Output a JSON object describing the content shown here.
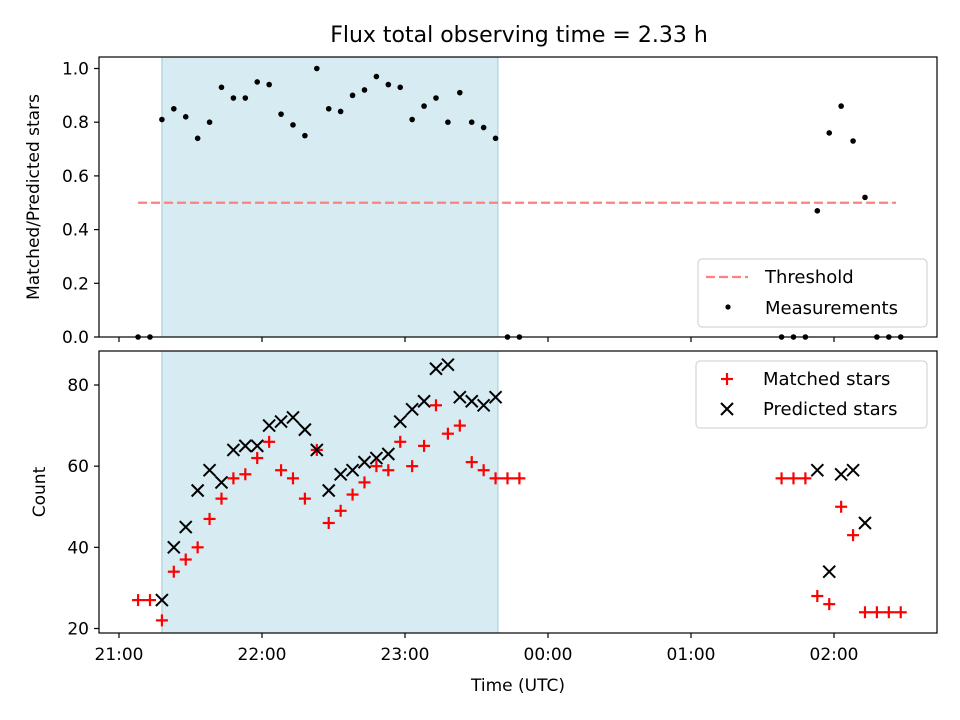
{
  "title": "Flux total observing time = 2.33 h",
  "chart_data": [
    {
      "type": "scatter",
      "ylabel": "Matched/Predicted stars",
      "xlabel": "",
      "xlim": [
        "21:00",
        "02:45"
      ],
      "ylim": [
        0,
        1.05
      ],
      "yticks": [
        "0.0",
        "0.2",
        "0.4",
        "0.6",
        "0.8",
        "1.0"
      ],
      "grid": false,
      "legend_position": "lower-right",
      "legend": [
        "Threshold",
        "Measurements"
      ],
      "shaded_interval": [
        "21:18",
        "23:39"
      ],
      "threshold": {
        "name": "Threshold",
        "value": 0.5,
        "x_range": [
          "21:08",
          "02:26"
        ],
        "color": "#ff8080"
      },
      "series": [
        {
          "name": "Measurements",
          "color": "#000000",
          "marker": "point",
          "points": [
            [
              "21:08",
              0.0
            ],
            [
              "21:13",
              0.0
            ],
            [
              "21:18",
              0.81
            ],
            [
              "21:23",
              0.85
            ],
            [
              "21:28",
              0.82
            ],
            [
              "21:33",
              0.74
            ],
            [
              "21:38",
              0.8
            ],
            [
              "21:43",
              0.93
            ],
            [
              "21:48",
              0.89
            ],
            [
              "21:53",
              0.89
            ],
            [
              "21:58",
              0.95
            ],
            [
              "22:03",
              0.94
            ],
            [
              "22:08",
              0.83
            ],
            [
              "22:13",
              0.79
            ],
            [
              "22:18",
              0.75
            ],
            [
              "22:23",
              1.0
            ],
            [
              "22:28",
              0.85
            ],
            [
              "22:33",
              0.84
            ],
            [
              "22:38",
              0.9
            ],
            [
              "22:43",
              0.92
            ],
            [
              "22:48",
              0.97
            ],
            [
              "22:53",
              0.94
            ],
            [
              "22:58",
              0.93
            ],
            [
              "23:03",
              0.81
            ],
            [
              "23:08",
              0.86
            ],
            [
              "23:13",
              0.89
            ],
            [
              "23:18",
              0.8
            ],
            [
              "23:23",
              0.91
            ],
            [
              "23:28",
              0.8
            ],
            [
              "23:33",
              0.78
            ],
            [
              "23:38",
              0.74
            ],
            [
              "23:43",
              0.0
            ],
            [
              "23:48",
              0.0
            ],
            [
              "01:38",
              0.0
            ],
            [
              "01:43",
              0.0
            ],
            [
              "01:48",
              0.0
            ],
            [
              "01:53",
              0.47
            ],
            [
              "01:58",
              0.76
            ],
            [
              "02:03",
              0.86
            ],
            [
              "02:08",
              0.73
            ],
            [
              "02:13",
              0.52
            ],
            [
              "02:18",
              0.0
            ],
            [
              "02:23",
              0.0
            ],
            [
              "02:28",
              0.0
            ]
          ]
        }
      ]
    },
    {
      "type": "scatter",
      "ylabel": "Count",
      "xlabel": "Time (UTC)",
      "xlim": [
        "21:00",
        "02:45"
      ],
      "ylim": [
        19,
        89
      ],
      "yticks": [
        "20",
        "40",
        "60",
        "80"
      ],
      "xticks": [
        "21:00",
        "22:00",
        "23:00",
        "00:00",
        "01:00",
        "02:00"
      ],
      "grid": false,
      "legend_position": "upper-right",
      "legend": [
        "Matched stars",
        "Predicted stars"
      ],
      "shaded_interval": [
        "21:18",
        "23:39"
      ],
      "series": [
        {
          "name": "Matched stars",
          "color": "#ff0000",
          "marker": "plus",
          "points": [
            [
              "21:08",
              27
            ],
            [
              "21:13",
              27
            ],
            [
              "21:18",
              22
            ],
            [
              "21:23",
              34
            ],
            [
              "21:28",
              37
            ],
            [
              "21:33",
              40
            ],
            [
              "21:38",
              47
            ],
            [
              "21:43",
              52
            ],
            [
              "21:48",
              57
            ],
            [
              "21:53",
              58
            ],
            [
              "21:58",
              62
            ],
            [
              "22:03",
              66
            ],
            [
              "22:08",
              59
            ],
            [
              "22:13",
              57
            ],
            [
              "22:18",
              52
            ],
            [
              "22:23",
              64
            ],
            [
              "22:28",
              46
            ],
            [
              "22:33",
              49
            ],
            [
              "22:38",
              53
            ],
            [
              "22:43",
              56
            ],
            [
              "22:48",
              60
            ],
            [
              "22:53",
              59
            ],
            [
              "22:58",
              66
            ],
            [
              "23:03",
              60
            ],
            [
              "23:08",
              65
            ],
            [
              "23:13",
              75
            ],
            [
              "23:18",
              68
            ],
            [
              "23:23",
              70
            ],
            [
              "23:28",
              61
            ],
            [
              "23:33",
              59
            ],
            [
              "23:38",
              57
            ],
            [
              "23:43",
              57
            ],
            [
              "23:48",
              57
            ],
            [
              "01:38",
              57
            ],
            [
              "01:43",
              57
            ],
            [
              "01:48",
              57
            ],
            [
              "01:53",
              28
            ],
            [
              "01:58",
              26
            ],
            [
              "02:03",
              50
            ],
            [
              "02:08",
              43
            ],
            [
              "02:13",
              24
            ],
            [
              "02:18",
              24
            ],
            [
              "02:23",
              24
            ],
            [
              "02:28",
              24
            ]
          ]
        },
        {
          "name": "Predicted stars",
          "color": "#000000",
          "marker": "x",
          "points": [
            [
              "21:18",
              27
            ],
            [
              "21:23",
              40
            ],
            [
              "21:28",
              45
            ],
            [
              "21:33",
              54
            ],
            [
              "21:38",
              59
            ],
            [
              "21:43",
              56
            ],
            [
              "21:48",
              64
            ],
            [
              "21:53",
              65
            ],
            [
              "21:58",
              65
            ],
            [
              "22:03",
              70
            ],
            [
              "22:08",
              71
            ],
            [
              "22:13",
              72
            ],
            [
              "22:18",
              69
            ],
            [
              "22:23",
              64
            ],
            [
              "22:28",
              54
            ],
            [
              "22:33",
              58
            ],
            [
              "22:38",
              59
            ],
            [
              "22:43",
              61
            ],
            [
              "22:48",
              62
            ],
            [
              "22:53",
              63
            ],
            [
              "22:58",
              71
            ],
            [
              "23:03",
              74
            ],
            [
              "23:08",
              76
            ],
            [
              "23:13",
              84
            ],
            [
              "23:18",
              85
            ],
            [
              "23:23",
              77
            ],
            [
              "23:28",
              76
            ],
            [
              "23:33",
              75
            ],
            [
              "23:38",
              77
            ],
            [
              "01:53",
              59
            ],
            [
              "01:58",
              34
            ],
            [
              "02:03",
              58
            ],
            [
              "02:08",
              59
            ],
            [
              "02:13",
              46
            ]
          ]
        }
      ]
    }
  ]
}
